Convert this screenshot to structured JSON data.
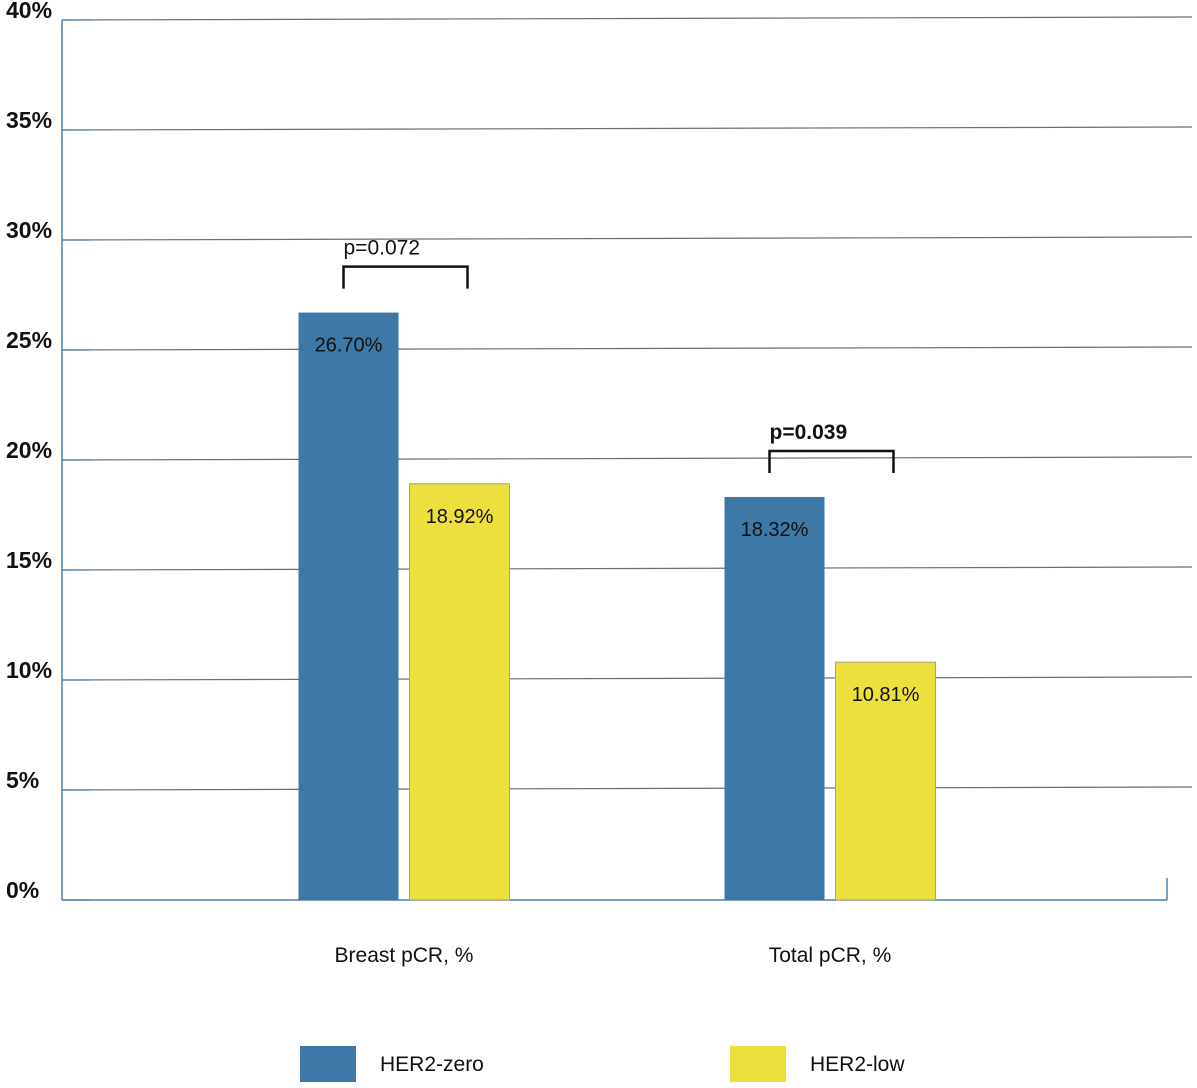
{
  "chart_data": {
    "type": "bar",
    "categories": [
      "Breast pCR, %",
      "Total pCR, %"
    ],
    "series": [
      {
        "name": "HER2-zero",
        "color": "#3e78a6",
        "values": [
          26.7,
          18.32
        ],
        "labels": [
          "26.70%",
          "18.32%"
        ]
      },
      {
        "name": "HER2-low",
        "color": "#ede03e",
        "values": [
          18.92,
          10.81
        ],
        "labels": [
          "18.92%",
          "10.81%"
        ]
      }
    ],
    "ylim": [
      0,
      40
    ],
    "yticks": [
      "0%",
      "5%",
      "10%",
      "15%",
      "20%",
      "25%",
      "30%",
      "35%",
      "40%"
    ],
    "grid": true,
    "legend_position": "bottom",
    "annotations": [
      {
        "category": "Breast pCR, %",
        "text": "p=0.072",
        "bold": false
      },
      {
        "category": "Total pCR, %",
        "text": "p=0.039",
        "bold": true
      }
    ]
  }
}
